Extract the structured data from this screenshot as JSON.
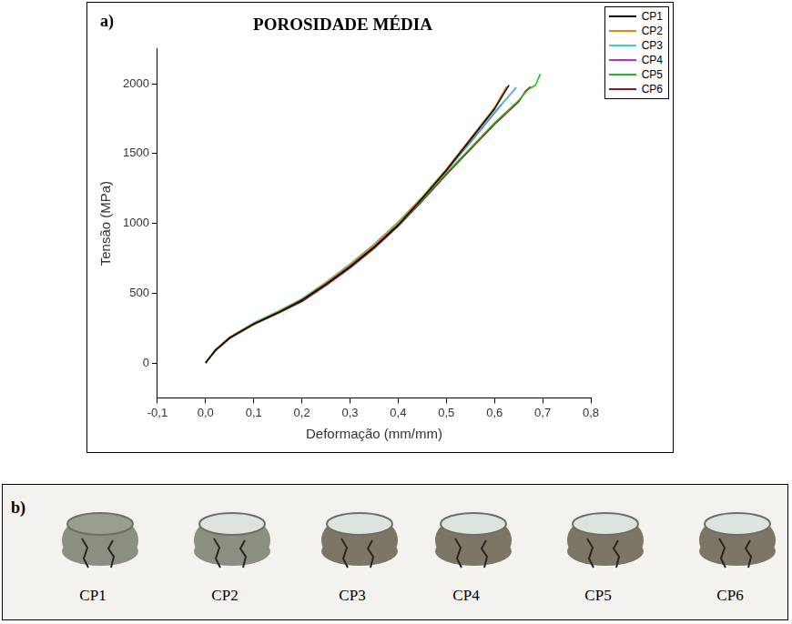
{
  "chart_data": {
    "type": "line",
    "panel": "a)",
    "title": "POROSIDADE MÉDIA",
    "x_label": "Deformação (mm/mm)",
    "y_label": "Tensão (MPa)",
    "xlim": [
      -0.1,
      0.8
    ],
    "xticks": [
      {
        "value": -0.1,
        "label": "-0,1"
      },
      {
        "value": 0,
        "label": "0,0"
      },
      {
        "value": 0.1,
        "label": "0,1"
      },
      {
        "value": 0.2,
        "label": "0,2"
      },
      {
        "value": 0.3,
        "label": "0,3"
      },
      {
        "value": 0.4,
        "label": "0,4"
      },
      {
        "value": 0.5,
        "label": "0,5"
      },
      {
        "value": 0.6,
        "label": "0,6"
      },
      {
        "value": 0.7,
        "label": "0,7"
      },
      {
        "value": 0.8,
        "label": "0,8"
      }
    ],
    "ylim": [
      -250,
      2250
    ],
    "yticks": [
      0,
      500,
      1000,
      1500,
      2000
    ],
    "grid": false,
    "legend": "top-right",
    "series": [
      {
        "name": "CP1",
        "color": "#000000",
        "x": [
          0,
          0.02,
          0.05,
          0.1,
          0.15,
          0.2,
          0.25,
          0.3,
          0.35,
          0.4,
          0.45,
          0.5,
          0.55,
          0.6,
          0.63
        ],
        "values": [
          0,
          90,
          180,
          280,
          360,
          450,
          565,
          690,
          830,
          990,
          1180,
          1380,
          1600,
          1820,
          1990
        ]
      },
      {
        "name": "CP2",
        "color": "#e08a00",
        "x": [
          0,
          0.02,
          0.05,
          0.1,
          0.15,
          0.2,
          0.25,
          0.3,
          0.35,
          0.4,
          0.45,
          0.5,
          0.55,
          0.6,
          0.625
        ],
        "values": [
          0,
          95,
          185,
          285,
          365,
          455,
          575,
          705,
          845,
          1005,
          1190,
          1390,
          1610,
          1830,
          1980
        ]
      },
      {
        "name": "CP3",
        "color": "#2fd3d3",
        "x": [
          0,
          0.02,
          0.05,
          0.1,
          0.15,
          0.2,
          0.25,
          0.3,
          0.35,
          0.4,
          0.45,
          0.5,
          0.55,
          0.6,
          0.645
        ],
        "values": [
          0,
          95,
          185,
          290,
          370,
          460,
          580,
          710,
          850,
          1010,
          1190,
          1380,
          1590,
          1800,
          1970
        ]
      },
      {
        "name": "CP4",
        "color": "#c030c8",
        "x": [
          0,
          0.02,
          0.05,
          0.1,
          0.15,
          0.2,
          0.25,
          0.3,
          0.35,
          0.4,
          0.45,
          0.5,
          0.55,
          0.6,
          0.645
        ],
        "values": [
          0,
          90,
          180,
          285,
          365,
          455,
          575,
          705,
          850,
          1010,
          1185,
          1375,
          1580,
          1790,
          1975
        ]
      },
      {
        "name": "CP5",
        "color": "#22b822",
        "x": [
          0,
          0.02,
          0.05,
          0.1,
          0.15,
          0.2,
          0.25,
          0.3,
          0.35,
          0.4,
          0.45,
          0.5,
          0.55,
          0.6,
          0.65,
          0.67,
          0.685,
          0.695
        ],
        "values": [
          0,
          90,
          180,
          280,
          360,
          450,
          565,
          695,
          835,
          990,
          1170,
          1360,
          1540,
          1720,
          1880,
          1960,
          1990,
          2070
        ]
      },
      {
        "name": "CP6",
        "color": "#8b1a1a",
        "x": [
          0,
          0.02,
          0.05,
          0.1,
          0.15,
          0.2,
          0.25,
          0.3,
          0.35,
          0.4,
          0.45,
          0.5,
          0.55,
          0.6,
          0.65,
          0.665,
          0.675
        ],
        "values": [
          0,
          85,
          175,
          275,
          355,
          440,
          555,
          680,
          820,
          980,
          1160,
          1350,
          1530,
          1710,
          1870,
          1950,
          1980
        ]
      }
    ]
  },
  "photo": {
    "panel": "b)",
    "specimens": [
      "CP1",
      "CP2",
      "CP3",
      "CP4",
      "CP5",
      "CP6"
    ]
  }
}
